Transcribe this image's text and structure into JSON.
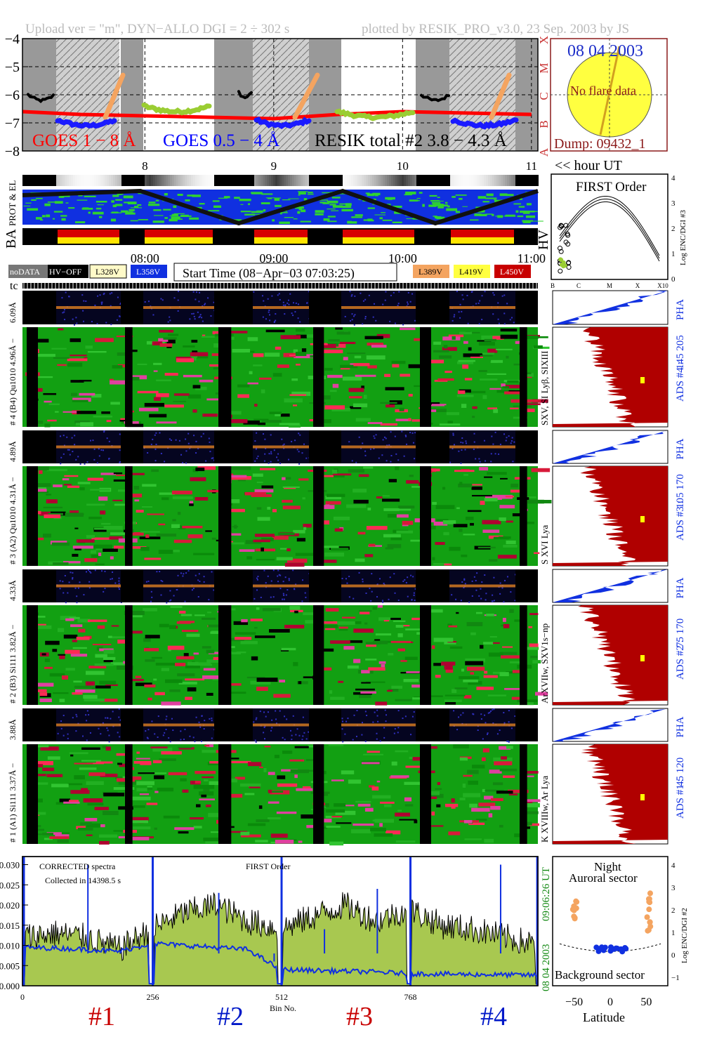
{
  "header": {
    "left": "Upload ver = \"m\", DYN−ALLO DGI =   2 ÷ 302 s",
    "right": "plotted by RESIK_PRO_v3.0, 23 Sep. 2003 by JS"
  },
  "goes_panel": {
    "y_ticks": [
      "−4",
      "−5",
      "−6",
      "−7",
      "−8"
    ],
    "class_letters": [
      "X",
      "M",
      "C",
      "B",
      "A"
    ],
    "labels": {
      "goes18": "GOES 1 − 8 Å",
      "goes054": "GOES 0.5 − 4 Å",
      "resik": "RESIK total #2  3.8 − 4.3 Å"
    },
    "colors": {
      "goes18": "#ff0000",
      "goes054": "#0000ff",
      "resik_night": "#f4a460",
      "resik_day": "#9acd32"
    }
  },
  "sun_panel": {
    "date": "08 04 2003",
    "flare": "No flare data",
    "dump": "Dump: 09432_1"
  },
  "hour_axis": {
    "ticks": [
      "8",
      "9",
      "10",
      "11"
    ],
    "label": "<< hour UT"
  },
  "orbit_panels": {
    "prot_label": "PROT & EL",
    "ba_label": "BA"
  },
  "time_axis": {
    "ticks": [
      "08:00",
      "09:00",
      "10:00",
      "11:00"
    ]
  },
  "hv_panel": {
    "title": "FIRST Order",
    "hv": "HV",
    "ylabel": "Log ENC/DGI #3",
    "y_ticks": [
      "4",
      "3",
      "2",
      "1",
      "0"
    ],
    "x_ticks": [
      "B",
      "C",
      "M",
      "X",
      "X10"
    ]
  },
  "legend": {
    "nodata": "noDATA",
    "hvoff": "HV−OFF",
    "l328": "L328V",
    "l358": "L358V",
    "start": "Start Time (08−Apr−03 07:03:25)",
    "l389": "L389V",
    "l419": "L419V",
    "l450": "L450V"
  },
  "tc_label": "tc",
  "channels": [
    {
      "pha_label": "6.09Å",
      "spec_label": "# 4 (B4) Qu1010 4.96Å −",
      "right_label": "SXV, SI Lyβ, SIXIII",
      "ads": "ADS #4 :",
      "ads_range": "145 205",
      "pha": "PHA"
    },
    {
      "pha_label": "4.89Å",
      "spec_label": "# 3 (A2) Qu1010  4.31Å −",
      "right_label": "S XVI Lya",
      "ads": "ADS #3 :",
      "ads_range": "105 170",
      "pha": "PHA"
    },
    {
      "pha_label": "4.33Å",
      "spec_label": "# 2 (B3) Si111  3.82Å −",
      "right_label": "ArXVIIw, SXV1s−np",
      "ads": "ADS #2 :",
      "ads_range": "75 170",
      "pha": "PHA"
    },
    {
      "pha_label": "3.88Å",
      "spec_label": "# 1 (A1) Si111  3.37Å −",
      "right_label": "K XVIIIw, Ar Lya",
      "ads": "ADS #1 :",
      "ads_range": "45 120",
      "pha": "PHA"
    }
  ],
  "spectrum_panel": {
    "text1": "CORRECTED spectra",
    "text2": "Collected in 14398.5 s",
    "order": "FIRST Order",
    "y_ticks": [
      "0.030",
      "0.025",
      "0.020",
      "0.015",
      "0.010",
      "0.005",
      "0.000"
    ],
    "x_ticks": [
      "0",
      "256",
      "512",
      "768"
    ],
    "xlabel": "Bin No.",
    "side_date": "08 04 2003",
    "side_time": "09:06:26 UT",
    "channel_tags": [
      "#1",
      "#2",
      "#3",
      "#4"
    ],
    "tag_colors": [
      "#c80000",
      "#0018c8",
      "#c80000",
      "#0018c8"
    ]
  },
  "latitude_panel": {
    "title1": "Night",
    "title2": "Auroral sector",
    "bottom": "Background sector",
    "xlabel": "Latitude",
    "x_ticks": [
      "−50",
      "0",
      "50"
    ],
    "ylabel": "Log ENC/DGI #2",
    "y_ticks": [
      "4",
      "3",
      "2",
      "1",
      "0",
      "−1"
    ]
  },
  "chart_data": {
    "type": "line",
    "title": "",
    "xlabel": "Bin No.",
    "ylabel": "",
    "xlim": [
      0,
      1024
    ],
    "ylim": [
      0.0,
      0.032
    ],
    "x_ticks": [
      0,
      256,
      512,
      768
    ],
    "series": [
      {
        "name": "CORRECTED spectra",
        "x": [
          0,
          64,
          128,
          192,
          256,
          320,
          384,
          448,
          512,
          576,
          640,
          704,
          768,
          832,
          896,
          960,
          1024
        ],
        "values": [
          0.012,
          0.013,
          0.012,
          0.009,
          0.014,
          0.018,
          0.02,
          0.016,
          0.014,
          0.017,
          0.02,
          0.016,
          0.019,
          0.015,
          0.014,
          0.012,
          0.01
        ]
      },
      {
        "x": [
          0,
          64,
          128,
          192,
          256,
          320,
          384,
          448,
          512,
          576,
          640,
          704,
          768,
          832,
          896,
          960,
          1024
        ],
        "values": [
          0.0095,
          0.0093,
          0.009,
          0.0085,
          0.0105,
          0.01,
          0.0095,
          0.009,
          0.004,
          0.0038,
          0.0036,
          0.0034,
          0.003,
          0.0029,
          0.0028,
          0.0027,
          0.0026
        ]
      }
    ],
    "goes_ylim": [
      -8,
      -4
    ],
    "goes_time_range_hours": [
      7.05,
      11.05
    ],
    "goes_1_8": {
      "t": [
        7.05,
        7.5,
        8.0,
        8.5,
        9.0,
        9.5,
        10.0,
        10.5,
        11.0
      ],
      "logflux": [
        -6.6,
        -6.7,
        -6.75,
        -6.8,
        -6.85,
        -6.7,
        -6.6,
        -6.65,
        -6.7
      ]
    }
  }
}
